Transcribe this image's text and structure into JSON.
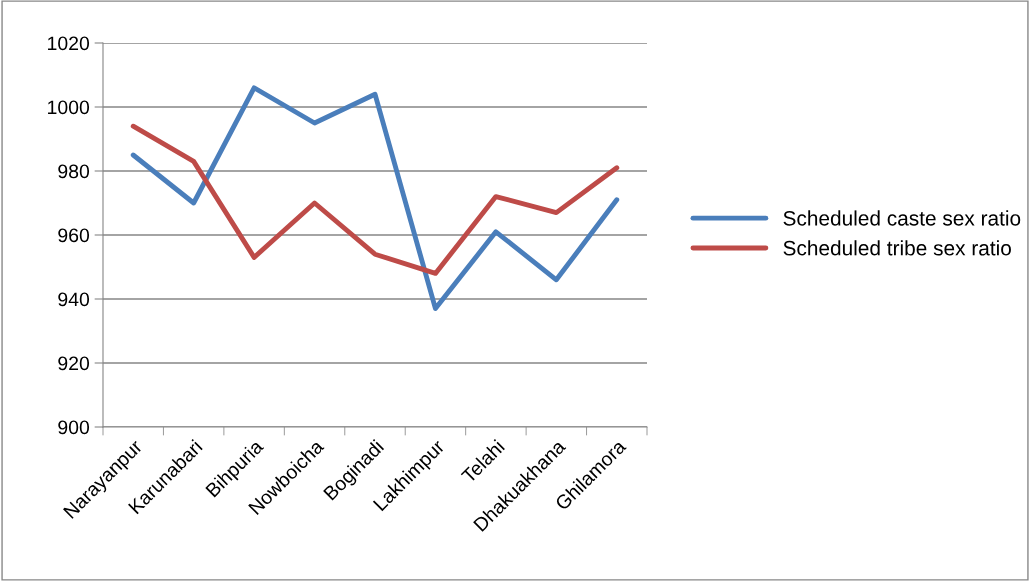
{
  "chart_data": {
    "type": "line",
    "categories": [
      "Narayanpur",
      "Karunabari",
      "Bihpuria",
      "Nowboicha",
      "Boginadi",
      "Lakhimpur",
      "Telahi",
      "Dhakuakhana",
      "Ghilamora"
    ],
    "series": [
      {
        "name": "Scheduled caste sex ratio",
        "color": "#4a7ebb",
        "values": [
          985,
          970,
          1006,
          995,
          1004,
          937,
          961,
          946,
          971
        ]
      },
      {
        "name": "Scheduled tribe sex ratio",
        "color": "#be4b48",
        "values": [
          994,
          983,
          953,
          970,
          954,
          948,
          972,
          967,
          981
        ]
      }
    ],
    "ylim": [
      900,
      1020
    ],
    "yticks": [
      900,
      920,
      940,
      960,
      980,
      1000,
      1020
    ],
    "grid": "y",
    "legend": "right",
    "marker": "none",
    "line_style": "solid"
  }
}
